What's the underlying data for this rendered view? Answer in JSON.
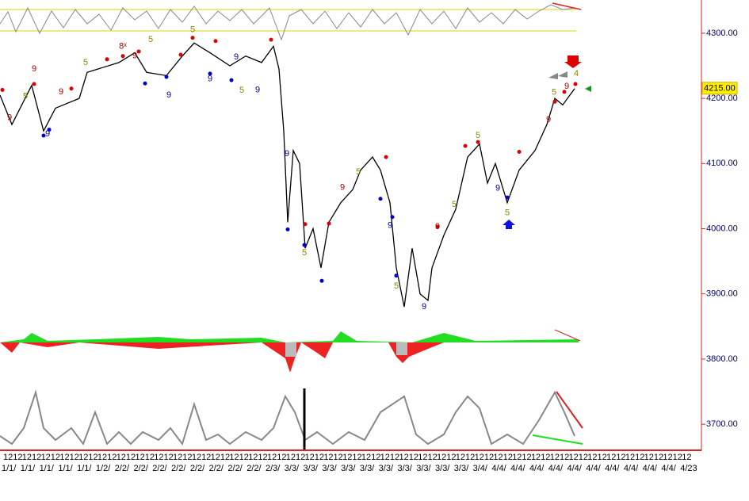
{
  "chart_data": {
    "type": "line",
    "x": [
      0,
      15,
      40,
      55,
      70,
      100,
      110,
      150,
      170,
      185,
      210,
      230,
      245,
      265,
      290,
      310,
      330,
      345,
      352,
      358,
      363,
      370,
      378,
      385,
      395,
      405,
      415,
      430,
      445,
      455,
      470,
      480,
      492,
      500,
      510,
      520,
      530,
      540,
      545,
      560,
      575,
      590,
      605,
      615,
      625,
      640,
      655,
      675,
      690,
      700,
      710,
      725
    ],
    "series": [
      {
        "color": "#000000",
        "values": [
          4205,
          4160,
          4220,
          4150,
          4185,
          4200,
          4240,
          4255,
          4270,
          4240,
          4235,
          4265,
          4285,
          4270,
          4250,
          4265,
          4255,
          4280,
          4245,
          4150,
          4010,
          4120,
          4100,
          3970,
          4000,
          3940,
          4010,
          4040,
          4060,
          4090,
          4110,
          4090,
          4040,
          3940,
          3880,
          3970,
          3900,
          3890,
          3940,
          3990,
          4030,
          4110,
          4130,
          4070,
          4100,
          4040,
          4090,
          4120,
          4160,
          4200,
          4190,
          4215
        ]
      }
    ],
    "signal_dots": [
      {
        "color": "#dd0000",
        "x": [
          3,
          43,
          90,
          135,
          155,
          175,
          228,
          243,
          272,
          342,
          385,
          415,
          487,
          552,
          587,
          603,
          655,
          700,
          712,
          726
        ],
        "values": [
          4213,
          4222,
          4215,
          4260,
          4265,
          4272,
          4267,
          4293,
          4288,
          4290,
          4007,
          4008,
          4110,
          4003,
          4127,
          4133,
          4118,
          4195,
          4210,
          4222
        ]
      },
      {
        "color": "#0000cc",
        "x": [
          55,
          62,
          183,
          210,
          265,
          292,
          363,
          384,
          406,
          480,
          495,
          500,
          640
        ],
        "values": [
          4143,
          4152,
          4223,
          4233,
          4238,
          4228,
          3999,
          3975,
          3920,
          4046,
          4018,
          3928,
          4048
        ]
      }
    ],
    "annotations": [
      {
        "text": "9",
        "x": 43,
        "y": 4245,
        "color": "#aa0000"
      },
      {
        "text": "5",
        "x": 32,
        "y": 4203,
        "color": "#888800"
      },
      {
        "text": "9",
        "x": 12,
        "y": 4170,
        "color": "#aa0000"
      },
      {
        "text": "9",
        "x": 77,
        "y": 4210,
        "color": "#aa0000"
      },
      {
        "text": "5",
        "x": 108,
        "y": 4255,
        "color": "#888800"
      },
      {
        "text": "8ˣ",
        "x": 155,
        "y": 4280,
        "color": "#aa0000"
      },
      {
        "text": "5",
        "x": 190,
        "y": 4290,
        "color": "#888800"
      },
      {
        "text": "9",
        "x": 170,
        "y": 4265,
        "color": "#aa0000"
      },
      {
        "text": "5",
        "x": 243,
        "y": 4305,
        "color": "#888800"
      },
      {
        "text": "9",
        "x": 213,
        "y": 4205,
        "color": "#000099"
      },
      {
        "text": "9",
        "x": 265,
        "y": 4230,
        "color": "#000099"
      },
      {
        "text": "9",
        "x": 298,
        "y": 4263,
        "color": "#000099"
      },
      {
        "text": "9",
        "x": 325,
        "y": 4213,
        "color": "#000099"
      },
      {
        "text": "5",
        "x": 305,
        "y": 4212,
        "color": "#888800"
      },
      {
        "text": "9",
        "x": 60,
        "y": 4145,
        "color": "#000099"
      },
      {
        "text": "9",
        "x": 362,
        "y": 4115,
        "color": "#000099"
      },
      {
        "text": "5",
        "x": 384,
        "y": 3963,
        "color": "#888800"
      },
      {
        "text": "9",
        "x": 432,
        "y": 4063,
        "color": "#aa0000"
      },
      {
        "text": "5",
        "x": 452,
        "y": 4087,
        "color": "#888800"
      },
      {
        "text": "9",
        "x": 492,
        "y": 4005,
        "color": "#000099"
      },
      {
        "text": "5",
        "x": 500,
        "y": 3912,
        "color": "#888800"
      },
      {
        "text": "9",
        "x": 535,
        "y": 3880,
        "color": "#000099"
      },
      {
        "text": "9",
        "x": 552,
        "y": 4003,
        "color": "#aa0000"
      },
      {
        "text": "5",
        "x": 573,
        "y": 4037,
        "color": "#888800"
      },
      {
        "text": "5",
        "x": 603,
        "y": 4143,
        "color": "#888800"
      },
      {
        "text": "9",
        "x": 628,
        "y": 4062,
        "color": "#000099"
      },
      {
        "text": "5",
        "x": 640,
        "y": 4024,
        "color": "#888800"
      },
      {
        "text": "9",
        "x": 692,
        "y": 4167,
        "color": "#aa0000"
      },
      {
        "text": "5",
        "x": 699,
        "y": 4209,
        "color": "#888800"
      },
      {
        "text": "9",
        "x": 715,
        "y": 4218,
        "color": "#aa0000"
      },
      {
        "text": "4",
        "x": 727,
        "y": 4238,
        "color": "#888800"
      }
    ],
    "last_price": {
      "value": 4215,
      "label": "4215.00"
    },
    "xlim": [
      0,
      885
    ],
    "ylim": [
      3660,
      4351
    ],
    "yticks": [
      {
        "value": 4300,
        "label": "4300.00"
      },
      {
        "value": 4200,
        "label": "4200.00"
      },
      {
        "value": 4100,
        "label": "4100.00"
      },
      {
        "value": 4000,
        "label": "4000.00"
      },
      {
        "value": 3900,
        "label": "3900.00"
      },
      {
        "value": 3800,
        "label": "3800.00"
      },
      {
        "value": 3700,
        "label": "3700.00"
      }
    ],
    "x_labels_top": [
      "1212",
      "1212",
      "1212",
      "1212",
      "1212",
      "1212",
      "1212",
      "1212",
      "1212",
      "1212",
      "1212",
      "1212",
      "1212",
      "1212",
      "1212",
      "1212",
      "1212",
      "1212",
      "1212",
      "1212",
      "1212",
      "1212",
      "1212",
      "1212",
      "1212",
      "1212",
      "1212",
      "1212",
      "1212",
      "1212",
      "1212",
      "1212",
      "1212",
      "1212",
      "1212",
      "1212",
      "12"
    ],
    "x_labels_bottom": [
      "1/1/",
      "1/1/",
      "1/1/",
      "1/1/",
      "1/1/",
      "1/2/",
      "2/2/",
      "2/2/",
      "2/2/",
      "2/2/",
      "2/2/",
      "2/2/",
      "2/2/",
      "2/2/",
      "2/3/",
      "3/3/",
      "3/3/",
      "3/3/",
      "3/3/",
      "3/3/",
      "3/3/",
      "3/3/",
      "3/3/",
      "3/3/",
      "3/3/",
      "3/4/",
      "4/4/",
      "4/4/",
      "4/4/",
      "4/4/",
      "4/4/",
      "4/4/",
      "4/4/",
      "4/4/",
      "4/4/",
      "4/4/",
      "4/23"
    ]
  }
}
